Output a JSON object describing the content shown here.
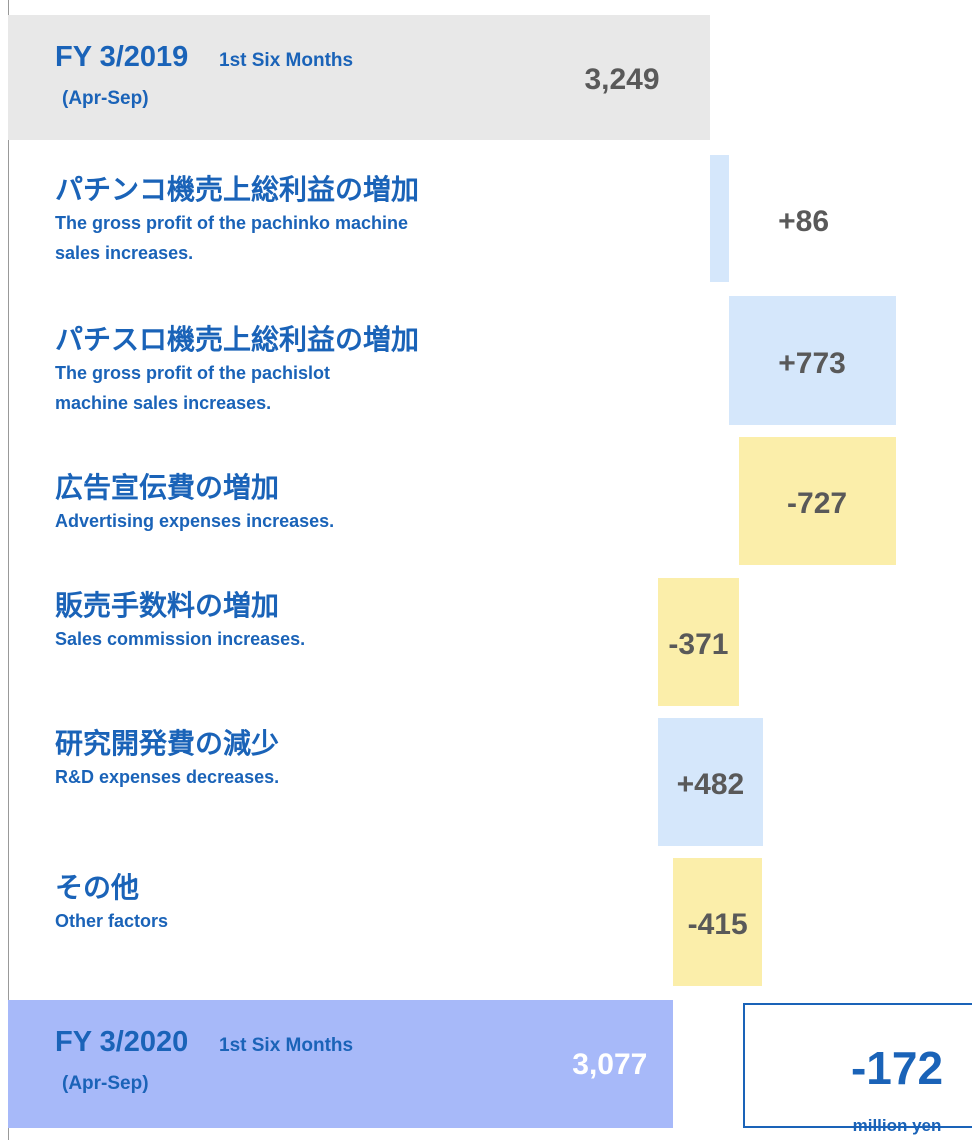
{
  "chart_data": {
    "type": "waterfall",
    "start": {
      "label": "FY 3/2019",
      "period": "1st Six Months",
      "months": "(Apr-Sep)",
      "value": 3249,
      "value_label": "3,249"
    },
    "steps": [
      {
        "label": "パチンコ機売上総利益の増加",
        "note": [
          "The gross profit of the pachinko machine",
          "sales increases."
        ],
        "value": 86,
        "value_label": "+86"
      },
      {
        "label": "パチスロ機売上総利益の増加",
        "note": [
          "The gross profit of the pachislot",
          "machine sales increases."
        ],
        "value": 773,
        "value_label": "+773"
      },
      {
        "label": "広告宣伝費の増加",
        "note": [
          "Advertising expenses increases."
        ],
        "value": -727
      },
      {
        "label": "販売手数料の増加",
        "note": [
          "Sales commission increases."
        ],
        "value": -371
      },
      {
        "label": "研究開発費の減少",
        "note": [
          "R&D expenses decreases."
        ],
        "value": 482,
        "value_label": "+482"
      },
      {
        "label": "その他",
        "note": [
          "Other factors"
        ],
        "value": -415
      }
    ],
    "end": {
      "label": "FY 3/2020",
      "period": "1st Six Months",
      "months": "(Apr-Sep)",
      "value": 3077,
      "value_label": "3,077"
    },
    "total_change": {
      "value": -172,
      "unit": "million yen"
    },
    "colors": {
      "start": "#e8e8e8",
      "increase": "#d5e7fb",
      "decrease": "#fbeeaa",
      "end": "#a7b9f9"
    }
  }
}
